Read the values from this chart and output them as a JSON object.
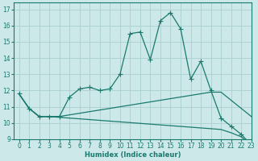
{
  "background_color": "#cce8e8",
  "grid_color": "#aacfcf",
  "line_color": "#1a7a6e",
  "xlabel": "Humidex (Indice chaleur)",
  "xlim": [
    -0.5,
    23
  ],
  "ylim": [
    9,
    17.4
  ],
  "yticks": [
    9,
    10,
    11,
    12,
    13,
    14,
    15,
    16,
    17
  ],
  "xticks": [
    0,
    1,
    2,
    3,
    4,
    5,
    6,
    7,
    8,
    9,
    10,
    11,
    12,
    13,
    14,
    15,
    16,
    17,
    18,
    19,
    20,
    21,
    22,
    23
  ],
  "line1_x": [
    0,
    1,
    2,
    3,
    4,
    5,
    6,
    7,
    8,
    9,
    10,
    11,
    12,
    13,
    14,
    15,
    16,
    17,
    18,
    19,
    20,
    21,
    22,
    23
  ],
  "line1_y": [
    11.8,
    10.9,
    10.4,
    10.4,
    10.4,
    11.6,
    12.1,
    12.2,
    12.0,
    12.1,
    13.0,
    15.5,
    15.6,
    13.9,
    16.3,
    16.8,
    15.8,
    12.7,
    13.8,
    12.0,
    10.3,
    9.8,
    9.3,
    8.65
  ],
  "line2_x": [
    0,
    1,
    2,
    3,
    4,
    19,
    20,
    23
  ],
  "line2_y": [
    11.8,
    10.9,
    10.4,
    10.4,
    10.4,
    11.9,
    11.9,
    10.4
  ],
  "line3_x": [
    0,
    1,
    2,
    3,
    4,
    19,
    20,
    21,
    22,
    23
  ],
  "line3_y": [
    11.8,
    10.9,
    10.4,
    10.4,
    10.35,
    9.65,
    9.6,
    9.4,
    9.15,
    8.65
  ]
}
